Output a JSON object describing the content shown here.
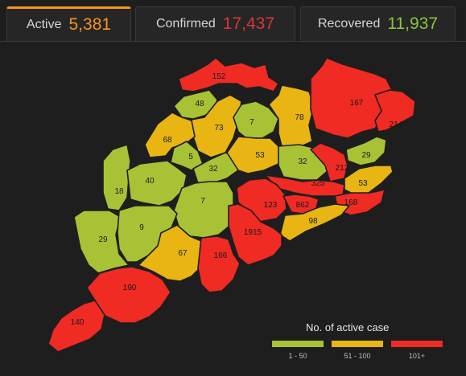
{
  "tabs": [
    {
      "label": "Active",
      "value": "5,381",
      "color": "#f7941d"
    },
    {
      "label": "Confirmed",
      "value": "17,437",
      "color": "#d9363e"
    },
    {
      "label": "Recovered",
      "value": "11,937",
      "color": "#8bc43f"
    }
  ],
  "colors": {
    "low": "#a8c236",
    "mid": "#e8b512",
    "high": "#ef2b24",
    "border": "#1e1e1e"
  },
  "districts": [
    {
      "value": "152",
      "band": "high"
    },
    {
      "value": "48",
      "band": "low"
    },
    {
      "value": "73",
      "band": "mid"
    },
    {
      "value": "7",
      "band": "low"
    },
    {
      "value": "78",
      "band": "mid"
    },
    {
      "value": "167",
      "band": "high"
    },
    {
      "value": "214",
      "band": "high"
    },
    {
      "value": "68",
      "band": "mid"
    },
    {
      "value": "5",
      "band": "low"
    },
    {
      "value": "32",
      "band": "low"
    },
    {
      "value": "53",
      "band": "mid"
    },
    {
      "value": "32",
      "band": "low"
    },
    {
      "value": "29",
      "band": "low"
    },
    {
      "value": "212",
      "band": "high"
    },
    {
      "value": "53",
      "band": "mid"
    },
    {
      "value": "325",
      "band": "high"
    },
    {
      "value": "18",
      "band": "low"
    },
    {
      "value": "40",
      "band": "low"
    },
    {
      "value": "7",
      "band": "low"
    },
    {
      "value": "123",
      "band": "high"
    },
    {
      "value": "862",
      "band": "high"
    },
    {
      "value": "168",
      "band": "high"
    },
    {
      "value": "98",
      "band": "mid"
    },
    {
      "value": "29",
      "band": "low"
    },
    {
      "value": "9",
      "band": "low"
    },
    {
      "value": "1915",
      "band": "high"
    },
    {
      "value": "67",
      "band": "mid"
    },
    {
      "value": "166",
      "band": "high"
    },
    {
      "value": "190",
      "band": "high"
    },
    {
      "value": "140",
      "band": "high"
    }
  ],
  "legend": {
    "title": "No. of active case",
    "items": [
      {
        "label": "1 - 50",
        "band": "low"
      },
      {
        "label": "51 - 100",
        "band": "mid"
      },
      {
        "label": "101+",
        "band": "high"
      }
    ]
  }
}
